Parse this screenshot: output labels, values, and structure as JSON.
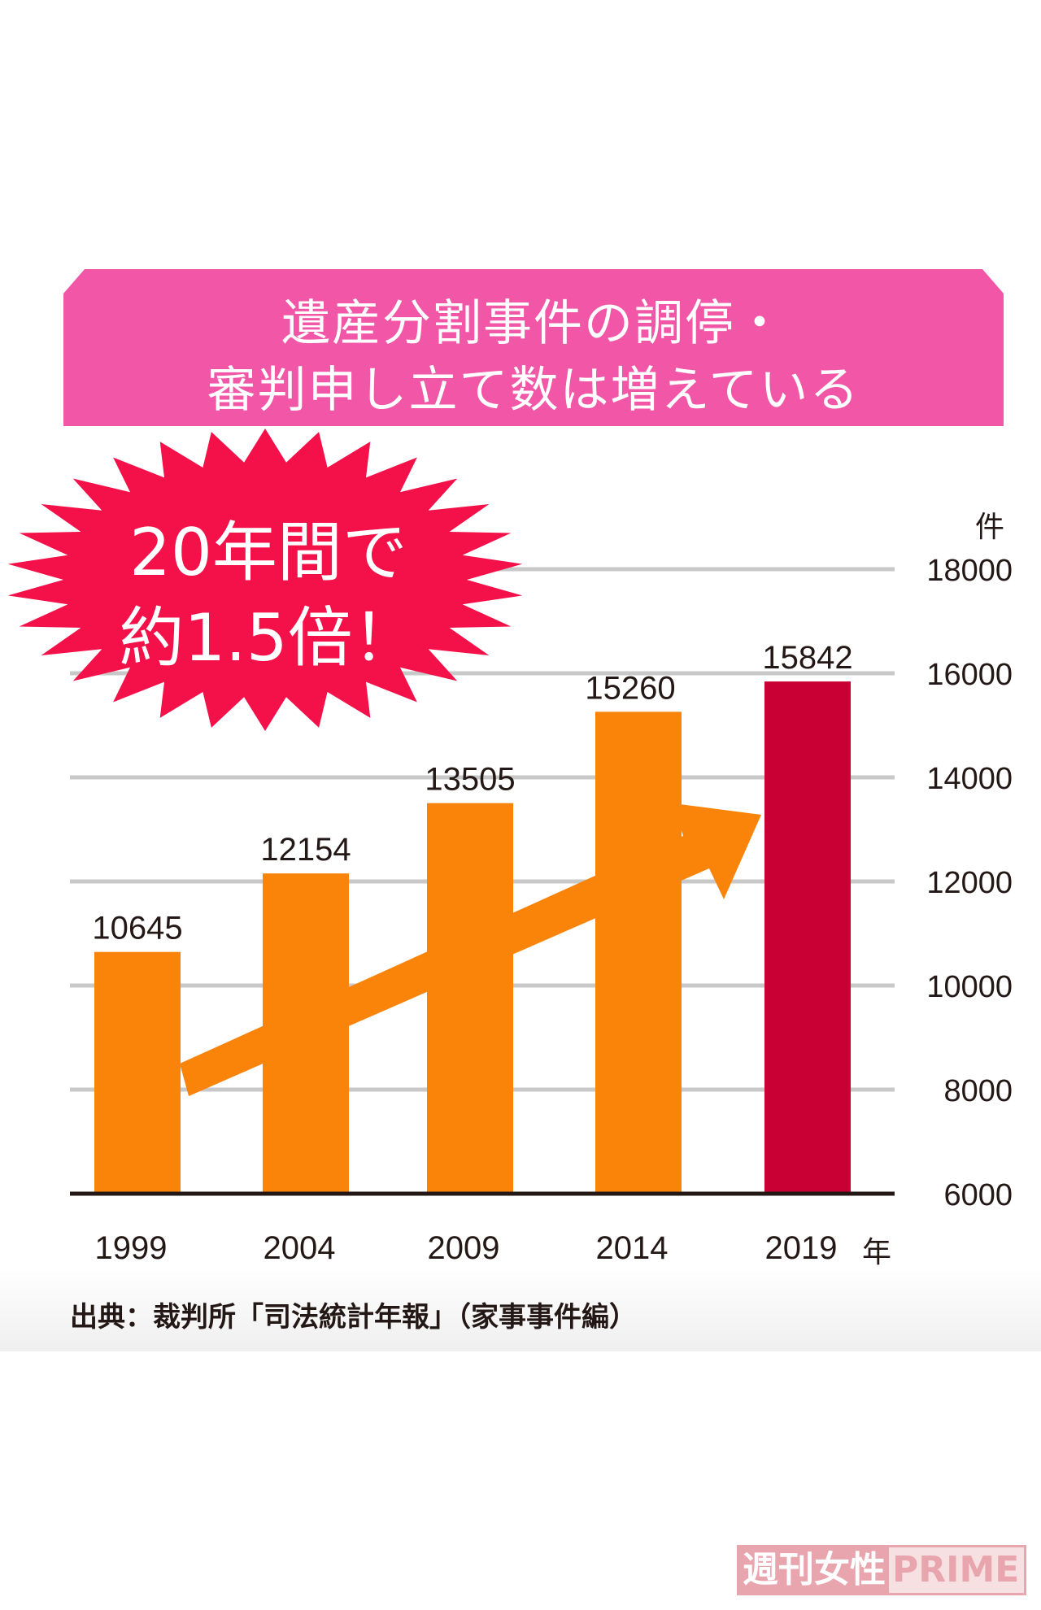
{
  "title_lines": [
    "遺産分割事件の調停・",
    "審判申し立て数は増えている"
  ],
  "callout_lines": [
    "20年間で",
    "約1.5倍！"
  ],
  "source": "出典：裁判所「司法統計年報」（家事事件編）",
  "watermark": "週刊女性PRIME",
  "colors": {
    "banner": "#f256a7",
    "bar": "#f98409",
    "highlight_bar": "#c80033",
    "burst": "#f41049",
    "grid": "#c8c8c8"
  },
  "chart_data": {
    "type": "bar",
    "categories": [
      "1999",
      "2004",
      "2009",
      "2014",
      "2019"
    ],
    "values": [
      10645,
      12154,
      13505,
      15260,
      15842
    ],
    "ylim": [
      6000,
      18000
    ],
    "yticks": [
      6000,
      8000,
      10000,
      12000,
      14000,
      16000,
      18000
    ],
    "yunit": "件",
    "xunit": "年",
    "grid": true,
    "highlight_index": 4,
    "trend_arrow": true
  }
}
